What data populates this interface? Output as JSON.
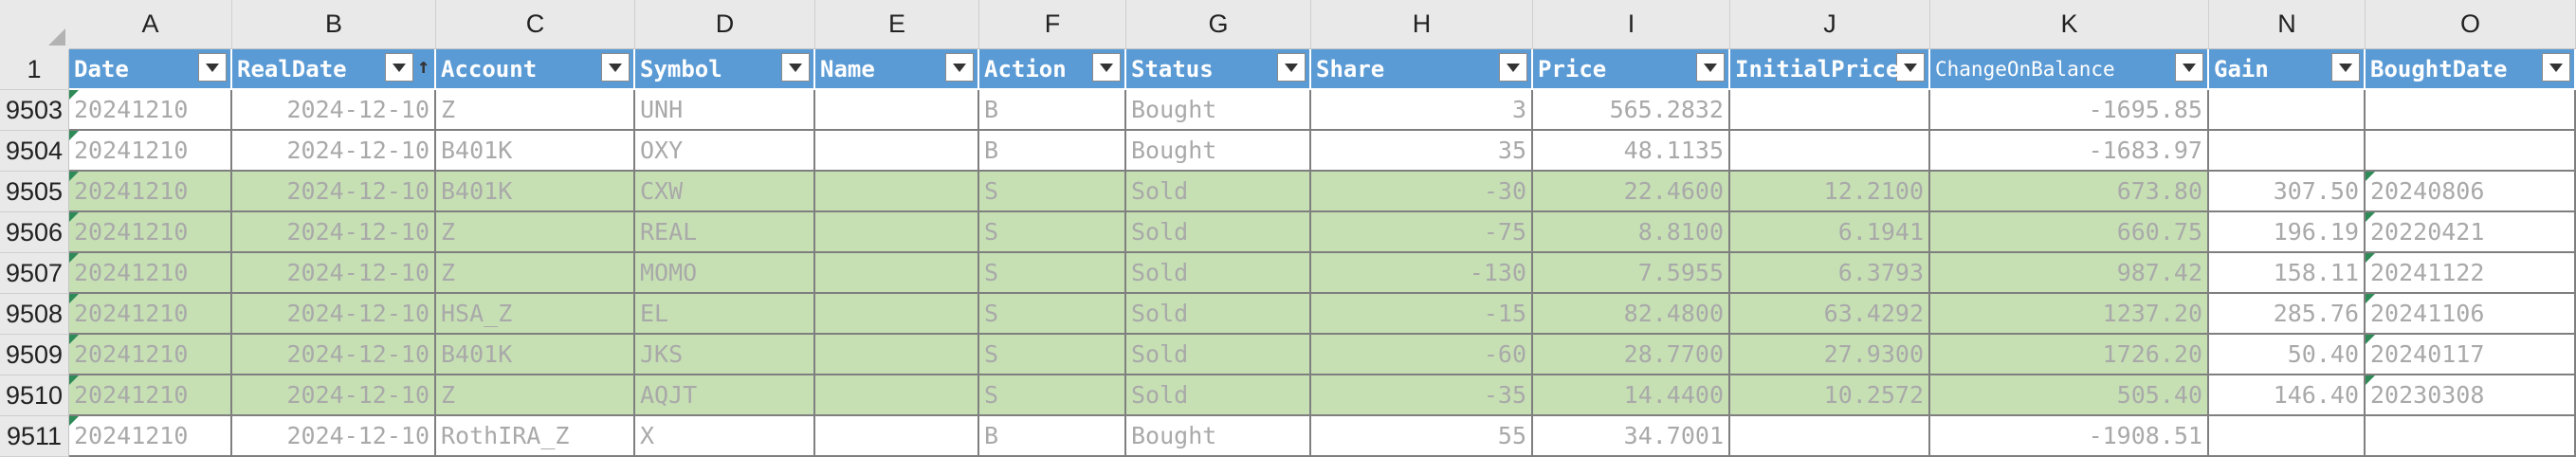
{
  "colors": {
    "header_fill": "#5b9bd5",
    "sold_fill": "#c6e0b4",
    "grid_border": "#7f7f7f"
  },
  "columns": [
    "A",
    "B",
    "C",
    "D",
    "E",
    "F",
    "G",
    "H",
    "I",
    "J",
    "K",
    "N",
    "O"
  ],
  "headers": [
    "Date",
    "RealDate",
    "Account",
    "Symbol",
    "Name",
    "Action",
    "Status",
    "Share",
    "Price",
    "InitialPrice",
    "ChangeOnBalance",
    "Gain",
    "BoughtDate"
  ],
  "header_row_number": "1",
  "rows": [
    {
      "row": "9503",
      "sold": false,
      "cells": [
        "20241210",
        "2024-12-10",
        "Z",
        "UNH",
        "",
        "B",
        "Bought",
        "3",
        "565.2832",
        "",
        "-1695.85",
        "",
        ""
      ]
    },
    {
      "row": "9504",
      "sold": false,
      "cells": [
        "20241210",
        "2024-12-10",
        "B401K",
        "OXY",
        "",
        "B",
        "Bought",
        "35",
        "48.1135",
        "",
        "-1683.97",
        "",
        ""
      ]
    },
    {
      "row": "9505",
      "sold": true,
      "cells": [
        "20241210",
        "2024-12-10",
        "B401K",
        "CXW",
        "",
        "S",
        "Sold",
        "-30",
        "22.4600",
        "12.2100",
        "673.80",
        "307.50",
        "20240806"
      ]
    },
    {
      "row": "9506",
      "sold": true,
      "cells": [
        "20241210",
        "2024-12-10",
        "Z",
        "REAL",
        "",
        "S",
        "Sold",
        "-75",
        "8.8100",
        "6.1941",
        "660.75",
        "196.19",
        "20220421"
      ]
    },
    {
      "row": "9507",
      "sold": true,
      "cells": [
        "20241210",
        "2024-12-10",
        "Z",
        "MOMO",
        "",
        "S",
        "Sold",
        "-130",
        "7.5955",
        "6.3793",
        "987.42",
        "158.11",
        "20241122"
      ]
    },
    {
      "row": "9508",
      "sold": true,
      "cells": [
        "20241210",
        "2024-12-10",
        "HSA_Z",
        "EL",
        "",
        "S",
        "Sold",
        "-15",
        "82.4800",
        "63.4292",
        "1237.20",
        "285.76",
        "20241106"
      ]
    },
    {
      "row": "9509",
      "sold": true,
      "cells": [
        "20241210",
        "2024-12-10",
        "B401K",
        "JKS",
        "",
        "S",
        "Sold",
        "-60",
        "28.7700",
        "27.9300",
        "1726.20",
        "50.40",
        "20240117"
      ]
    },
    {
      "row": "9510",
      "sold": true,
      "cells": [
        "20241210",
        "2024-12-10",
        "Z",
        "AQJT",
        "",
        "S",
        "Sold",
        "-35",
        "14.4400",
        "10.2572",
        "505.40",
        "146.40",
        "20230308"
      ]
    },
    {
      "row": "9511",
      "sold": false,
      "cells": [
        "20241210",
        "2024-12-10",
        "RothIRA_Z",
        "X",
        "",
        "B",
        "Bought",
        "55",
        "34.7001",
        "",
        "-1908.51",
        "",
        ""
      ]
    }
  ]
}
